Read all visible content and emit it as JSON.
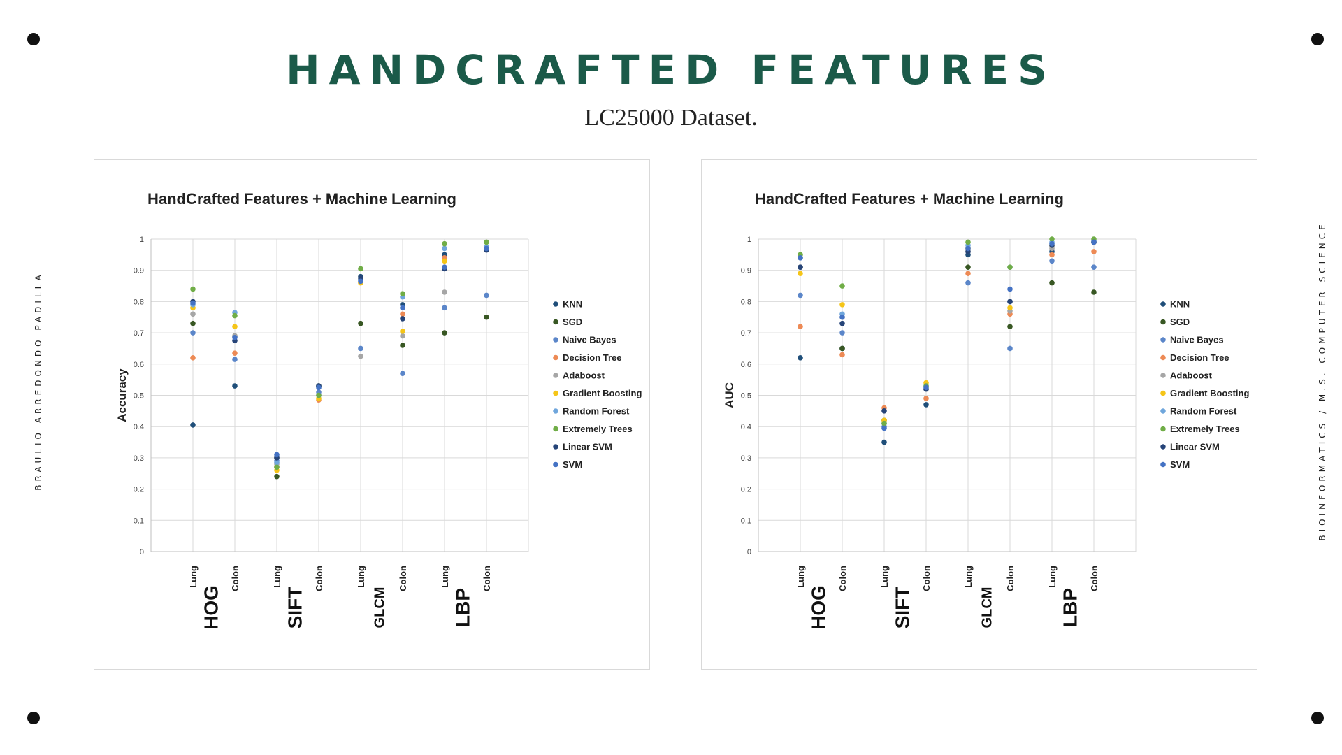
{
  "header": {
    "title": "HANDCRAFTED FEATURES",
    "subtitle": "LC25000 Dataset."
  },
  "side": {
    "left": "BRAULIO ARREDONDO PADILLA",
    "right": "BIOINFORMATICS / M.S. COMPUTER SCIENCE"
  },
  "colors": {
    "title": "#1b5a49",
    "KNN": "#1f4e79",
    "SGD": "#385723",
    "Naive Bayes": "#5b86c9",
    "Decision Tree": "#ed8a55",
    "Adaboost": "#a6a6a6",
    "Gradient Boosting": "#f5c518",
    "Random Forest": "#6fa6dc",
    "Extremely Trees": "#70ad47",
    "Linear SVM": "#264478",
    "SVM": "#4472c4"
  },
  "chart_data": [
    {
      "type": "scatter",
      "title": "HandCrafted Features + Machine Learning",
      "ylabel": "Accuracy",
      "ylim": [
        0,
        1
      ],
      "yticks": [
        "0",
        "0.1",
        "0.2",
        "0.3",
        "0.4",
        "0.5",
        "0.6",
        "0.7",
        "0.8",
        "0.9",
        "1"
      ],
      "categories": [
        "Lung",
        "Colon",
        "Lung",
        "Colon",
        "Lung",
        "Colon",
        "Lung",
        "Colon"
      ],
      "groups": [
        "HOG",
        "SIFT",
        "GLCM",
        "LBP"
      ],
      "grid": true,
      "legend": "right",
      "series": [
        {
          "name": "KNN",
          "values": [
            0.405,
            0.53,
            0.3,
            0.53,
            0.88,
            0.79,
            0.95,
            0.97
          ]
        },
        {
          "name": "SGD",
          "values": [
            0.73,
            0.69,
            0.24,
            0.53,
            0.73,
            0.66,
            0.7,
            0.75
          ]
        },
        {
          "name": "Naive Bayes",
          "values": [
            0.7,
            0.615,
            0.29,
            0.51,
            0.65,
            0.57,
            0.78,
            0.82
          ]
        },
        {
          "name": "Decision Tree",
          "values": [
            0.62,
            0.635,
            0.27,
            0.485,
            0.86,
            0.76,
            0.94,
            0.97
          ]
        },
        {
          "name": "Adaboost",
          "values": [
            0.76,
            0.69,
            0.28,
            0.5,
            0.625,
            0.69,
            0.83,
            0.97
          ]
        },
        {
          "name": "Gradient Boosting",
          "values": [
            0.78,
            0.72,
            0.26,
            0.49,
            0.86,
            0.705,
            0.93,
            0.975
          ]
        },
        {
          "name": "Random Forest",
          "values": [
            0.79,
            0.765,
            0.285,
            0.5,
            0.87,
            0.815,
            0.97,
            0.975
          ]
        },
        {
          "name": "Extremely Trees",
          "values": [
            0.84,
            0.755,
            0.27,
            0.5,
            0.905,
            0.825,
            0.985,
            0.99
          ]
        },
        {
          "name": "Linear SVM",
          "values": [
            0.8,
            0.675,
            0.3,
            0.53,
            0.875,
            0.745,
            0.905,
            0.965
          ]
        },
        {
          "name": "SVM",
          "values": [
            0.795,
            0.685,
            0.31,
            0.525,
            0.865,
            0.78,
            0.91,
            0.97
          ]
        }
      ]
    },
    {
      "type": "scatter",
      "title": "HandCrafted Features + Machine Learning",
      "ylabel": "AUC",
      "ylim": [
        0,
        1
      ],
      "yticks": [
        "0",
        "0.1",
        "0.2",
        "0.3",
        "0.4",
        "0.5",
        "0.6",
        "0.7",
        "0.8",
        "0.9",
        "1"
      ],
      "categories": [
        "Lung",
        "Colon",
        "Lung",
        "Colon",
        "Lung",
        "Colon",
        "Lung",
        "Colon"
      ],
      "groups": [
        "HOG",
        "SIFT",
        "GLCM",
        "LBP"
      ],
      "grid": true,
      "legend": "right",
      "series": [
        {
          "name": "KNN",
          "values": [
            0.62,
            0.65,
            0.35,
            0.47,
            0.95,
            0.8,
            0.96,
            0.99
          ]
        },
        {
          "name": "SGD",
          "values": [
            0.91,
            0.65,
            0.42,
            0.52,
            0.91,
            0.72,
            0.86,
            0.83
          ]
        },
        {
          "name": "Naive Bayes",
          "values": [
            0.82,
            0.7,
            0.4,
            0.52,
            0.86,
            0.65,
            0.93,
            0.91
          ]
        },
        {
          "name": "Decision Tree",
          "values": [
            0.72,
            0.63,
            0.46,
            0.49,
            0.89,
            0.76,
            0.95,
            0.96
          ]
        },
        {
          "name": "Adaboost",
          "values": [
            0.91,
            0.75,
            0.41,
            0.52,
            0.96,
            0.77,
            0.97,
            0.99
          ]
        },
        {
          "name": "Gradient Boosting",
          "values": [
            0.89,
            0.79,
            0.42,
            0.54,
            0.97,
            0.78,
            0.98,
            0.99
          ]
        },
        {
          "name": "Random Forest",
          "values": [
            0.94,
            0.76,
            0.41,
            0.53,
            0.98,
            0.91,
            0.99,
            0.995
          ]
        },
        {
          "name": "Extremely Trees",
          "values": [
            0.95,
            0.85,
            0.41,
            0.53,
            0.99,
            0.91,
            1.0,
            1.0
          ]
        },
        {
          "name": "Linear SVM",
          "values": [
            0.91,
            0.73,
            0.45,
            0.52,
            0.96,
            0.8,
            0.98,
            0.99
          ]
        },
        {
          "name": "SVM",
          "values": [
            0.94,
            0.75,
            0.395,
            0.525,
            0.97,
            0.84,
            0.985,
            0.99
          ]
        }
      ]
    }
  ]
}
